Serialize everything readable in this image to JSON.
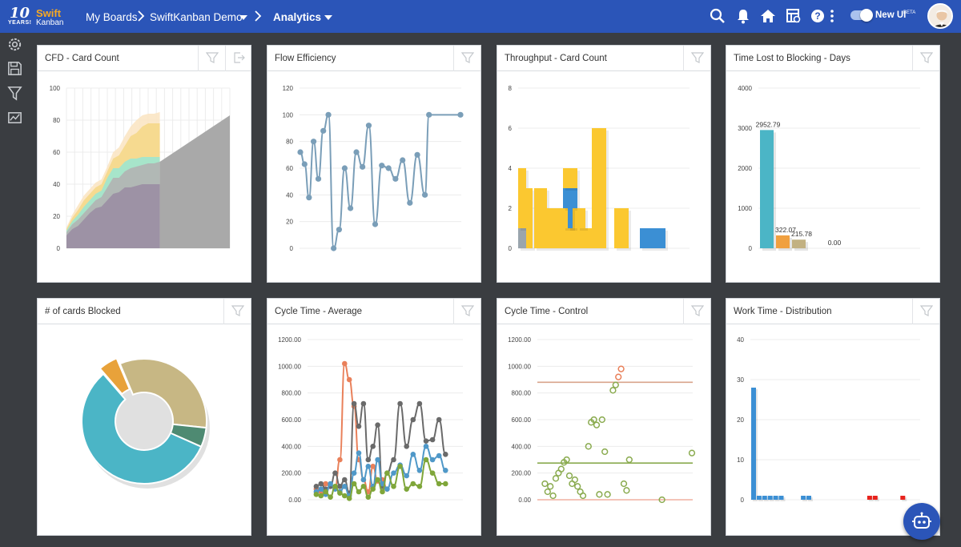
{
  "app": {
    "logo_years": "10",
    "logo_years_sub": "YEARS!",
    "logo_brand_top": "Swift",
    "logo_brand_bottom": "Kanban",
    "brand_color": "#2b55b8"
  },
  "breadcrumb": {
    "my_boards": "My Boards",
    "board": "SwiftKanban Demo",
    "view": "Analytics"
  },
  "toolbar": {
    "new_ui_label": "New UI",
    "beta_label": "BETA",
    "new_ui_enabled": true
  },
  "icons": {
    "topbar": [
      "search-icon",
      "notifications-icon",
      "home-icon",
      "board-settings-icon",
      "help-icon",
      "more-vert-icon"
    ],
    "sidebar": [
      "settings-gear-icon",
      "save-icon",
      "filter-icon",
      "chart-icon"
    ],
    "panel": [
      "filter-icon",
      "export-icon"
    ],
    "chatbot": "chatbot-icon"
  },
  "panels": {
    "cfd": {
      "title": "CFD - Card Count"
    },
    "flow": {
      "title": "Flow Efficiency"
    },
    "throughput": {
      "title": "Throughput - Card Count"
    },
    "blocking": {
      "title": "Time Lost to Blocking - Days"
    },
    "blocked": {
      "title": "# of cards Blocked"
    },
    "cycle_avg": {
      "title": "Cycle Time - Average"
    },
    "cycle_ctrl": {
      "title": "Cycle Time - Control"
    },
    "work_time": {
      "title": "Work Time - Distribution"
    }
  },
  "chart_data": [
    {
      "id": "cfd",
      "type": "area",
      "title": "CFD - Card Count",
      "ylim": [
        0,
        100
      ],
      "yticks": [
        0,
        20,
        40,
        60,
        80,
        100
      ],
      "x": [
        0,
        1,
        2,
        3,
        4,
        5,
        6,
        7,
        8,
        9,
        10,
        11,
        12,
        13,
        14,
        15,
        16
      ],
      "series": [
        {
          "color": "#9b8ea3",
          "values": [
            8,
            12,
            14,
            18,
            22,
            25,
            26,
            30,
            34,
            35,
            38,
            38,
            39,
            40,
            40,
            40,
            40
          ]
        },
        {
          "color": "#b3b3b3",
          "values": [
            10,
            15,
            18,
            22,
            26,
            30,
            32,
            38,
            44,
            44,
            48,
            50,
            51,
            52,
            53,
            53,
            54
          ]
        },
        {
          "color": "#9fe6d0",
          "values": [
            11,
            17,
            21,
            26,
            30,
            34,
            36,
            44,
            50,
            50,
            54,
            56,
            56,
            57,
            57,
            57,
            57
          ]
        },
        {
          "color": "#f5d88a",
          "values": [
            12,
            19,
            24,
            30,
            34,
            38,
            40,
            48,
            56,
            58,
            64,
            70,
            72,
            76,
            78,
            78,
            78
          ]
        },
        {
          "color": "#fbe6c4",
          "values": [
            13,
            21,
            27,
            33,
            37,
            41,
            43,
            51,
            60,
            63,
            70,
            76,
            80,
            83,
            84,
            84,
            85
          ]
        }
      ],
      "forecast": {
        "color": "#a9a9a9",
        "x_start": 16,
        "start_value": 54,
        "end_value": 83
      }
    },
    {
      "id": "flow",
      "type": "line",
      "title": "Flow Efficiency",
      "ylim": [
        0,
        120
      ],
      "yticks": [
        0,
        20,
        40,
        60,
        80,
        100,
        120
      ],
      "color": "#7a9eb8",
      "values": [
        72,
        63,
        38,
        80,
        52,
        88,
        100,
        0,
        14,
        60,
        30,
        72,
        61,
        92,
        18,
        62,
        60,
        52,
        66,
        34,
        70,
        40,
        100,
        100
      ]
    },
    {
      "id": "throughput",
      "type": "bar",
      "title": "Throughput - Card Count",
      "ylim": [
        0,
        8
      ],
      "yticks": [
        0,
        2,
        4,
        6,
        8
      ],
      "series": [
        {
          "name": "gray",
          "color": "#9aa5ad",
          "values": [
            1,
            0,
            0,
            0,
            0,
            0,
            0,
            0,
            0,
            0,
            0,
            0,
            0,
            0,
            0,
            0
          ]
        },
        {
          "name": "blue",
          "color": "#3b8fd4",
          "values": [
            0,
            0,
            0,
            0,
            0,
            0,
            0,
            1,
            0,
            0,
            0,
            0,
            0,
            1,
            1,
            0
          ]
        },
        {
          "name": "blue2",
          "color": "#3b8fd4",
          "values": [
            0,
            0,
            0,
            0,
            0,
            0,
            0,
            1,
            0,
            0,
            0,
            0,
            0,
            0,
            0,
            0
          ]
        },
        {
          "name": "yellow",
          "color": "#fbc830",
          "values": [
            3,
            3,
            2,
            3,
            2,
            2,
            1,
            2,
            2,
            6,
            0,
            2,
            0,
            0,
            0,
            0
          ]
        }
      ]
    },
    {
      "id": "blocking",
      "type": "bar",
      "title": "Time Lost to Blocking - Days",
      "ylim": [
        0,
        4000
      ],
      "yticks": [
        0,
        1000,
        2000,
        3000,
        4000
      ],
      "bars": [
        {
          "value": 2952.79,
          "label": "2952.79",
          "color": "#4bb5c6"
        },
        {
          "value": 322.07,
          "label": "322.07",
          "color": "#f0a040"
        },
        {
          "value": 215.78,
          "label": "215.78",
          "color": "#c2b182"
        },
        {
          "value": 0,
          "label": "0.00",
          "color": "#aaaaaa"
        }
      ]
    },
    {
      "id": "blocked",
      "type": "pie",
      "title": "# of cards Blocked",
      "slices": [
        {
          "value": 57,
          "color": "#4bb5c6"
        },
        {
          "value": 5,
          "color": "#e8a23a"
        },
        {
          "value": 33,
          "color": "#c7b784"
        },
        {
          "value": 5,
          "color": "#4e8a72"
        }
      ]
    },
    {
      "id": "cycle_avg",
      "type": "line",
      "title": "Cycle Time - Average",
      "ylim": [
        0,
        1200
      ],
      "yticks": [
        0,
        200,
        400,
        600,
        800,
        1000,
        1200
      ],
      "tick_labels": [
        "0.00",
        "200.00",
        "400.00",
        "600.00",
        "800.00",
        "1000.00",
        "1200.00"
      ],
      "series": [
        {
          "color": "#e9805a",
          "x": [
            1,
            2,
            3,
            4,
            5,
            6,
            7,
            8,
            9,
            10,
            11,
            12,
            13,
            14,
            15,
            16
          ],
          "values": [
            80,
            60,
            120,
            100,
            90,
            300,
            1020,
            900,
            700,
            300,
            150,
            60,
            250,
            140,
            150,
            80
          ]
        },
        {
          "color": "#6a6a6a",
          "x": [
            1,
            2,
            3,
            4,
            5,
            6,
            7,
            8,
            9,
            10,
            11,
            12,
            13,
            14,
            15,
            16,
            17,
            18,
            19,
            20,
            21,
            22,
            23,
            24,
            25
          ],
          "values": [
            100,
            120,
            80,
            100,
            200,
            100,
            150,
            50,
            720,
            550,
            720,
            300,
            400,
            560,
            100,
            200,
            300,
            720,
            400,
            600,
            720,
            440,
            450,
            600,
            340
          ]
        },
        {
          "color": "#4f98c8",
          "x": [
            1,
            2,
            3,
            4,
            5,
            6,
            7,
            8,
            9,
            10,
            11,
            12,
            13,
            14,
            15,
            16,
            17,
            18,
            19,
            20,
            21,
            22,
            23,
            24,
            25
          ],
          "values": [
            60,
            80,
            40,
            120,
            80,
            60,
            100,
            30,
            200,
            350,
            150,
            250,
            100,
            300,
            120,
            80,
            200,
            260,
            180,
            340,
            220,
            400,
            300,
            330,
            220
          ]
        },
        {
          "color": "#7fa63a",
          "x": [
            1,
            2,
            3,
            4,
            5,
            6,
            7,
            8,
            9,
            10,
            11,
            12,
            13,
            14,
            15,
            16,
            17,
            18,
            19,
            20,
            21,
            22,
            23,
            24,
            25
          ],
          "values": [
            40,
            30,
            60,
            20,
            100,
            50,
            30,
            10,
            120,
            60,
            100,
            20,
            80,
            150,
            60,
            200,
            100,
            250,
            80,
            120,
            100,
            300,
            200,
            120,
            120
          ]
        }
      ]
    },
    {
      "id": "cycle_ctrl",
      "type": "scatter",
      "title": "Cycle Time - Control",
      "ylim": [
        0,
        1200
      ],
      "yticks": [
        0,
        200,
        400,
        600,
        800,
        1000,
        1200
      ],
      "tick_labels": [
        "0.00",
        "200.00",
        "400.00",
        "600.00",
        "800.00",
        "1000.00",
        "1200.00"
      ],
      "lines": [
        {
          "value": 880,
          "color": "#d9a48c"
        },
        {
          "value": 275,
          "color": "#8aab4f"
        },
        {
          "value": 0,
          "color": "#f0b0a0"
        }
      ],
      "points": [
        {
          "x": 1,
          "y": 120,
          "color": "#8aab4f"
        },
        {
          "x": 2,
          "y": 60,
          "color": "#8aab4f"
        },
        {
          "x": 3,
          "y": 100,
          "color": "#8aab4f"
        },
        {
          "x": 4,
          "y": 30,
          "color": "#8aab4f"
        },
        {
          "x": 5,
          "y": 160,
          "color": "#8aab4f"
        },
        {
          "x": 6,
          "y": 200,
          "color": "#8aab4f"
        },
        {
          "x": 7,
          "y": 230,
          "color": "#8aab4f"
        },
        {
          "x": 8,
          "y": 280,
          "color": "#8aab4f"
        },
        {
          "x": 9,
          "y": 300,
          "color": "#8aab4f"
        },
        {
          "x": 10,
          "y": 180,
          "color": "#8aab4f"
        },
        {
          "x": 11,
          "y": 120,
          "color": "#8aab4f"
        },
        {
          "x": 12,
          "y": 150,
          "color": "#8aab4f"
        },
        {
          "x": 13,
          "y": 100,
          "color": "#8aab4f"
        },
        {
          "x": 14,
          "y": 60,
          "color": "#8aab4f"
        },
        {
          "x": 15,
          "y": 30,
          "color": "#8aab4f"
        },
        {
          "x": 17,
          "y": 400,
          "color": "#8aab4f"
        },
        {
          "x": 18,
          "y": 580,
          "color": "#8aab4f"
        },
        {
          "x": 19,
          "y": 600,
          "color": "#8aab4f"
        },
        {
          "x": 20,
          "y": 560,
          "color": "#8aab4f"
        },
        {
          "x": 21,
          "y": 40,
          "color": "#8aab4f"
        },
        {
          "x": 22,
          "y": 600,
          "color": "#8aab4f"
        },
        {
          "x": 23,
          "y": 360,
          "color": "#8aab4f"
        },
        {
          "x": 24,
          "y": 40,
          "color": "#8aab4f"
        },
        {
          "x": 26,
          "y": 820,
          "color": "#8aab4f"
        },
        {
          "x": 27,
          "y": 860,
          "color": "#8aab4f"
        },
        {
          "x": 28,
          "y": 920,
          "color": "#e9805a"
        },
        {
          "x": 29,
          "y": 980,
          "color": "#e9805a"
        },
        {
          "x": 30,
          "y": 120,
          "color": "#8aab4f"
        },
        {
          "x": 31,
          "y": 70,
          "color": "#8aab4f"
        },
        {
          "x": 32,
          "y": 300,
          "color": "#8aab4f"
        },
        {
          "x": 44,
          "y": 0,
          "color": "#8aab4f"
        },
        {
          "x": 55,
          "y": 350,
          "color": "#8aab4f"
        }
      ]
    },
    {
      "id": "work_time",
      "type": "bar",
      "title": "Work Time - Distribution",
      "ylim": [
        0,
        40
      ],
      "yticks": [
        0,
        10,
        20,
        30,
        40
      ],
      "bars": [
        {
          "x": 0,
          "value": 28,
          "color": "#3b8fd4"
        },
        {
          "x": 1,
          "value": 1,
          "color": "#3b8fd4"
        },
        {
          "x": 2,
          "value": 1,
          "color": "#3b8fd4"
        },
        {
          "x": 3,
          "value": 1,
          "color": "#3b8fd4"
        },
        {
          "x": 4,
          "value": 1,
          "color": "#3b8fd4"
        },
        {
          "x": 5,
          "value": 1,
          "color": "#3b8fd4"
        },
        {
          "x": 9,
          "value": 1,
          "color": "#3b8fd4"
        },
        {
          "x": 10,
          "value": 1,
          "color": "#3b8fd4"
        },
        {
          "x": 21,
          "value": 1,
          "color": "#e8231d"
        },
        {
          "x": 22,
          "value": 1,
          "color": "#e8231d"
        },
        {
          "x": 27,
          "value": 1,
          "color": "#e8231d"
        }
      ]
    }
  ]
}
